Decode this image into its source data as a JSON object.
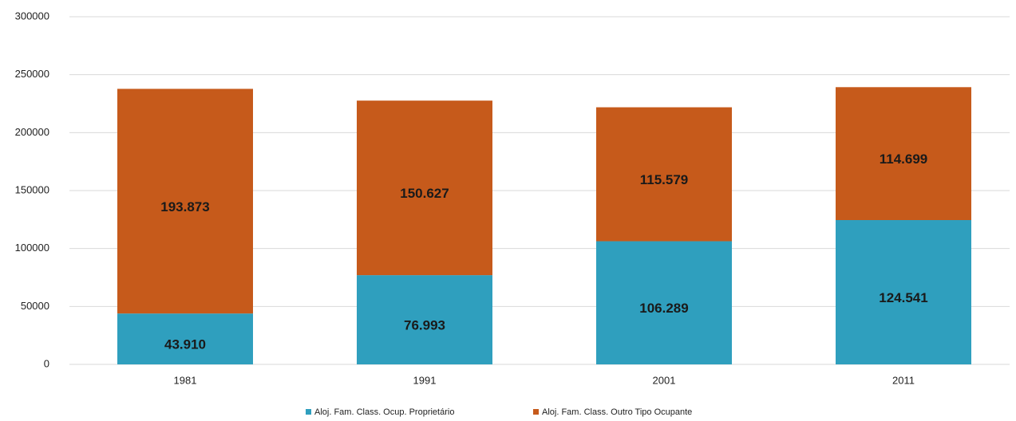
{
  "chart_data": {
    "type": "stacked_bar",
    "categories": [
      "1981",
      "1991",
      "2001",
      "2011"
    ],
    "series": [
      {
        "name": "Aloj. Fam. Class. Ocup. Proprietário",
        "color": "#2f9fbe",
        "values": [
          43910,
          76993,
          106289,
          124541
        ],
        "value_labels": [
          "43.910",
          "76.993",
          "106.289",
          "124.541"
        ]
      },
      {
        "name": "Aloj. Fam. Class. Outro Tipo Ocupante",
        "color": "#c65a1b",
        "values": [
          193873,
          150627,
          115579,
          114699
        ],
        "value_labels": [
          "193.873",
          "150.627",
          "115.579",
          "114.699"
        ]
      }
    ],
    "ylim": [
      0,
      300000
    ],
    "yticks": [
      0,
      50000,
      100000,
      150000,
      200000,
      250000,
      300000
    ],
    "grid": true,
    "legend": "bottom"
  }
}
